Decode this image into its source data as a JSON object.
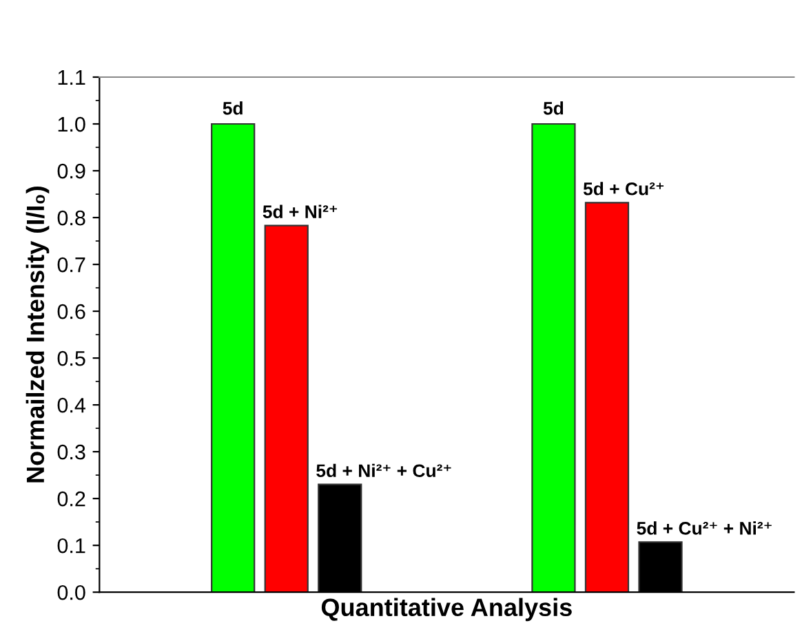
{
  "chart_data": {
    "type": "bar",
    "xlabel": "Quantitative Analysis",
    "ylabel": "Normailzed Intensity (I/I₀)",
    "categories": [
      null,
      null,
      null,
      null,
      null,
      null,
      null,
      null,
      null,
      null,
      null,
      null,
      null
    ],
    "values": [
      null,
      null,
      1.0,
      0.783,
      0.23,
      null,
      null,
      null,
      1.0,
      0.832,
      0.107,
      null,
      null
    ],
    "colors": [
      null,
      null,
      "#00ff00",
      "#ff0000",
      "#000000",
      null,
      null,
      null,
      "#00ff00",
      "#ff0000",
      "#000000",
      null,
      null
    ],
    "annotations": [
      "5d",
      "5d + Ni²⁺",
      "5d + Ni²⁺ + Cu²⁺",
      "5d",
      "5d + Cu²⁺",
      "5d + Cu²⁺ + Ni²⁺"
    ],
    "ylim": [
      0,
      1.1
    ],
    "yticks": [
      {
        "value": 0,
        "label": "0.0"
      },
      0.1,
      0.2,
      0.3,
      0.4,
      0.5,
      0.6,
      0.7,
      0.8,
      0.9,
      {
        "value": 1,
        "label": "1.0"
      },
      1.1
    ],
    "tick_labels": "y",
    "grid": false
  }
}
